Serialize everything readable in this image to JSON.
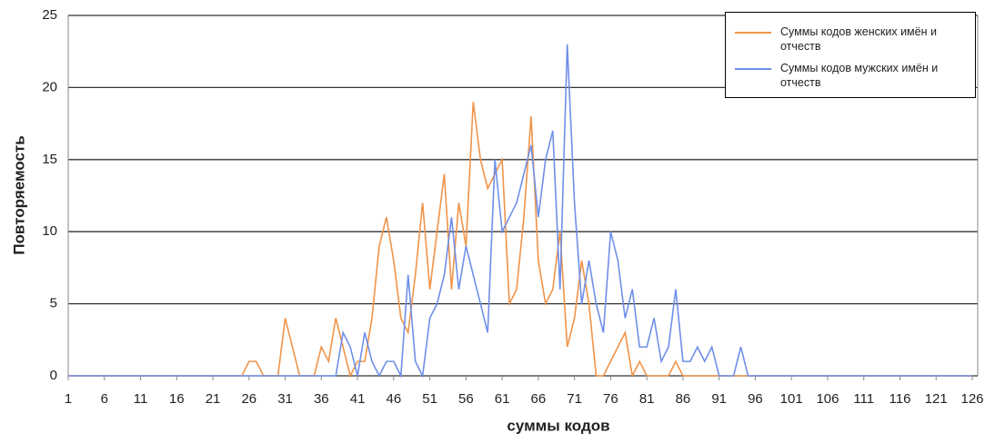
{
  "chart_data": {
    "type": "line",
    "x": [
      1,
      2,
      3,
      4,
      5,
      6,
      7,
      8,
      9,
      10,
      11,
      12,
      13,
      14,
      15,
      16,
      17,
      18,
      19,
      20,
      21,
      22,
      23,
      24,
      25,
      26,
      27,
      28,
      29,
      30,
      31,
      32,
      33,
      34,
      35,
      36,
      37,
      38,
      39,
      40,
      41,
      42,
      43,
      44,
      45,
      46,
      47,
      48,
      49,
      50,
      51,
      52,
      53,
      54,
      55,
      56,
      57,
      58,
      59,
      60,
      61,
      62,
      63,
      64,
      65,
      66,
      67,
      68,
      69,
      70,
      71,
      72,
      73,
      74,
      75,
      76,
      77,
      78,
      79,
      80,
      81,
      82,
      83,
      84,
      85,
      86,
      87,
      88,
      89,
      90,
      91,
      92,
      93,
      94,
      95,
      96,
      97,
      98,
      99,
      100,
      101,
      102,
      103,
      104,
      105,
      106,
      107,
      108,
      109,
      110,
      111,
      112,
      113,
      114,
      115,
      116,
      117,
      118,
      119,
      120,
      121,
      122,
      123,
      124,
      125,
      126
    ],
    "series": [
      {
        "name": "Суммы кодов женских имён и отчеств",
        "color": "#f0944a",
        "values": [
          0,
          0,
          0,
          0,
          0,
          0,
          0,
          0,
          0,
          0,
          0,
          0,
          0,
          0,
          0,
          0,
          0,
          0,
          0,
          0,
          0,
          0,
          0,
          0,
          0,
          1,
          1,
          0,
          0,
          0,
          4,
          2,
          0,
          0,
          0,
          2,
          1,
          4,
          2,
          0,
          1,
          1,
          4,
          9,
          11,
          8,
          4,
          3,
          7,
          12,
          6,
          10,
          14,
          6,
          12,
          9,
          19,
          15,
          13,
          14,
          15,
          5,
          6,
          11,
          18,
          8,
          5,
          6,
          10,
          2,
          4,
          8,
          5,
          0,
          0,
          1,
          2,
          3,
          0,
          1,
          0,
          0,
          0,
          0,
          1,
          0,
          0,
          0,
          0,
          0,
          0,
          0,
          0,
          0,
          0,
          0,
          0,
          0,
          0,
          0,
          0,
          0,
          0,
          0,
          0,
          0,
          0,
          0,
          0,
          0,
          0,
          0,
          0,
          0,
          0,
          0,
          0,
          0,
          0,
          0,
          0,
          0,
          0,
          0,
          0,
          0
        ]
      },
      {
        "name": "Суммы кодов мужских имён и отчеств",
        "color": "#6f8fe8",
        "values": [
          0,
          0,
          0,
          0,
          0,
          0,
          0,
          0,
          0,
          0,
          0,
          0,
          0,
          0,
          0,
          0,
          0,
          0,
          0,
          0,
          0,
          0,
          0,
          0,
          0,
          0,
          0,
          0,
          0,
          0,
          0,
          0,
          0,
          0,
          0,
          0,
          0,
          0,
          3,
          2,
          0,
          3,
          1,
          0,
          1,
          1,
          0,
          7,
          1,
          0,
          4,
          5,
          7,
          11,
          6,
          9,
          7,
          5,
          3,
          15,
          10,
          11,
          12,
          14,
          16,
          11,
          15,
          17,
          6,
          23,
          12,
          5,
          8,
          5,
          3,
          10,
          8,
          4,
          6,
          2,
          2,
          4,
          1,
          2,
          6,
          1,
          1,
          2,
          1,
          2,
          0,
          0,
          0,
          2,
          0,
          0,
          0,
          0,
          0,
          0,
          0,
          0,
          0,
          0,
          0,
          0,
          0,
          0,
          0,
          0,
          0,
          0,
          0,
          0,
          0,
          0,
          0,
          0,
          0,
          0,
          0,
          0,
          0,
          0,
          0,
          0
        ]
      }
    ],
    "xlim": [
      1,
      126
    ],
    "xticks": [
      1,
      6,
      11,
      16,
      21,
      26,
      31,
      36,
      41,
      46,
      51,
      56,
      61,
      66,
      71,
      76,
      81,
      86,
      91,
      96,
      101,
      106,
      111,
      116,
      121,
      126
    ],
    "ylim": [
      0,
      25
    ],
    "yticks": [
      0,
      5,
      10,
      15,
      20,
      25
    ],
    "grid": true,
    "xlabel": "суммы кодов",
    "ylabel": "Повторяемость",
    "legend": "upper right"
  }
}
